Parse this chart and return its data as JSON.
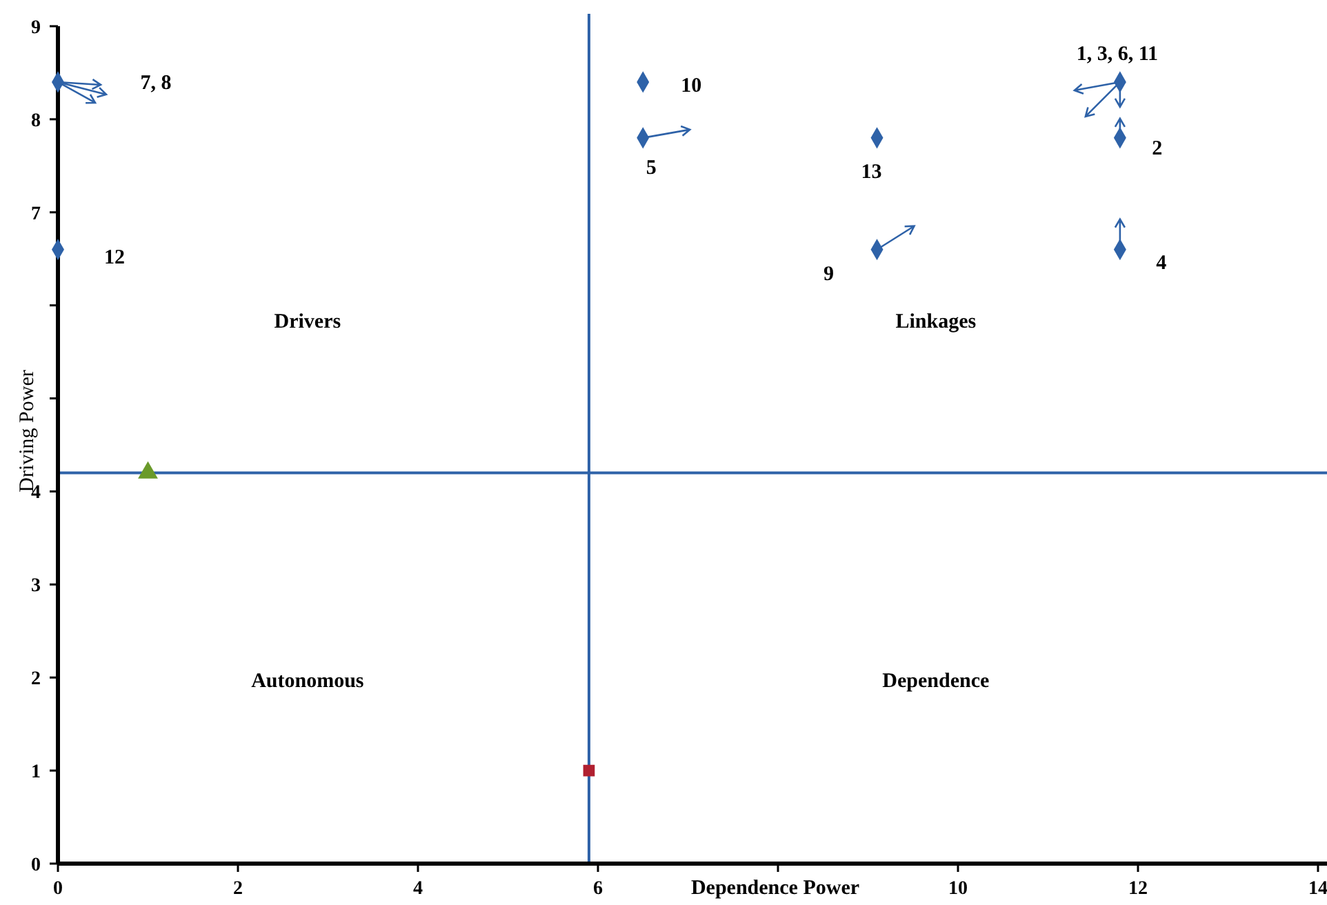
{
  "chart_data": {
    "type": "scatter",
    "xlabel": "Dependence Power",
    "ylabel": "Driving Power",
    "xlim": [
      0,
      14.1
    ],
    "ylim": [
      0,
      9
    ],
    "xticks": [
      0,
      2,
      4,
      6,
      {
        "value": 8,
        "label": null
      },
      10,
      12,
      14
    ],
    "yticks": [
      0,
      1,
      2,
      3,
      4,
      {
        "value": 5,
        "label": null
      },
      {
        "value": 6,
        "label": null
      },
      7,
      8,
      9
    ],
    "grid": false,
    "series": [
      {
        "color": "#2e62a8",
        "marker": "diamond",
        "x": [
          0,
          0,
          6.5,
          6.5,
          9.1,
          9.1,
          11.8,
          11.8,
          11.8
        ],
        "values": [
          8.4,
          6.6,
          8.4,
          7.8,
          7.8,
          6.6,
          8.4,
          7.8,
          6.6
        ]
      },
      {
        "color": "#6a9a2a",
        "marker": "triangle",
        "x": [
          1
        ],
        "values": [
          4.2
        ]
      },
      {
        "color": "#b02030",
        "marker": "square",
        "x": [
          5.9
        ],
        "values": [
          1
        ]
      }
    ],
    "ref_lines": [
      {
        "axis": "x",
        "value": 5.9,
        "color": "#2e62a8"
      },
      {
        "axis": "y",
        "value": 4.2,
        "color": "#2e62a8"
      }
    ],
    "annotations": [
      "7, 8",
      {
        "text": "12",
        "x": 0,
        "y": 6.6
      },
      {
        "text": "10",
        "x": 6.5,
        "y": 8.4
      },
      {
        "text": "5",
        "x": 6.5,
        "y": 7.8
      },
      {
        "text": "13",
        "x": 9.1,
        "y": 7.8
      },
      {
        "text": "9",
        "x": 9.1,
        "y": 6.6
      },
      {
        "text": "1, 3, 6, 11",
        "x": 11.8,
        "y": 8.4
      },
      {
        "text": "2",
        "x": 11.8,
        "y": 7.8
      },
      {
        "text": "4",
        "x": 11.8,
        "y": 6.6
      },
      "Drivers",
      "Linkages",
      "Autonomous",
      "Dependence"
    ]
  }
}
